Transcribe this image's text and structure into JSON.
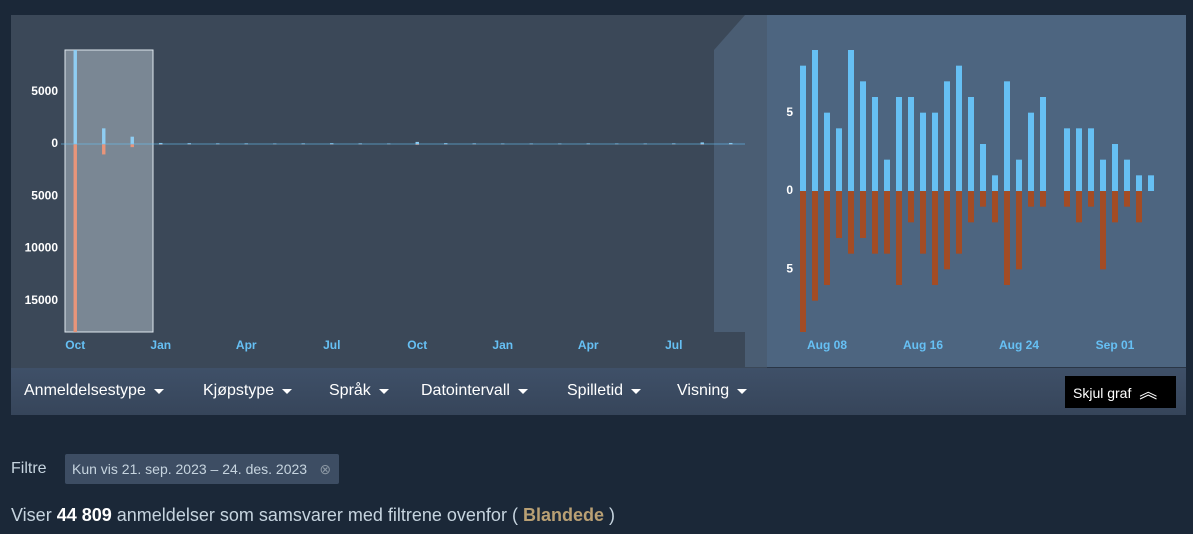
{
  "chart_data": [
    {
      "type": "bar",
      "categories": [
        "Oct",
        null,
        null,
        "Jan",
        null,
        null,
        "Apr",
        null,
        null,
        "Jul",
        null,
        null,
        "Oct",
        null,
        null,
        "Jan",
        null,
        null,
        "Apr",
        null,
        null,
        "Jul",
        null,
        null
      ],
      "series": [
        {
          "color": "#8fcdf2",
          "values": [
            9000,
            1500,
            700,
            100,
            80,
            60,
            60,
            50,
            60,
            80,
            60,
            50,
            200,
            80,
            60,
            50,
            50,
            50,
            60,
            50,
            50,
            60,
            150,
            100
          ]
        },
        {
          "color": "#e8957a",
          "values": [
            -18000,
            -1000,
            -300,
            -60,
            -50,
            -40,
            -40,
            -30,
            -40,
            -50,
            -40,
            -30,
            -80,
            -50,
            -40,
            -30,
            -30,
            -30,
            -40,
            -30,
            -30,
            -40,
            -60,
            -50
          ]
        }
      ],
      "ylim": [
        -18000,
        9000
      ],
      "yticks": [
        5000,
        0,
        {
          "value": -5000,
          "label": "5000"
        },
        {
          "value": -10000,
          "label": "10000"
        },
        {
          "value": -15000,
          "label": "15000"
        }
      ]
    },
    {
      "type": "bar",
      "categories": [
        null,
        null,
        "Aug 08",
        null,
        null,
        null,
        null,
        null,
        null,
        null,
        "Aug 16",
        null,
        null,
        null,
        null,
        null,
        null,
        null,
        "Aug 24",
        null,
        null,
        null,
        null,
        null,
        null,
        null,
        "Sep 01",
        null,
        null,
        null
      ],
      "series": [
        {
          "color": "#66c0f4",
          "values": [
            8,
            9,
            5,
            4,
            9,
            7,
            6,
            2,
            6,
            6,
            5,
            5,
            7,
            8,
            6,
            3,
            1,
            7,
            2,
            5,
            6,
            0,
            4,
            4,
            4,
            2,
            3,
            2,
            1,
            1
          ]
        },
        {
          "color": "#a34c25",
          "values": [
            -9,
            -7,
            -6,
            -3,
            -4,
            -3,
            -4,
            -4,
            -6,
            -2,
            -4,
            -6,
            -5,
            -4,
            -2,
            -1,
            -2,
            -6,
            -5,
            -1,
            -1,
            0,
            -1,
            -2,
            -1,
            -5,
            -2,
            -1,
            -2,
            0
          ]
        }
      ],
      "ylim": [
        -9,
        9
      ],
      "yticks": [
        5,
        0,
        {
          "value": -5,
          "label": "5"
        }
      ]
    }
  ],
  "menu": [
    "Anmeldelsestype",
    "Kjøpstype",
    "Språk",
    "Datointervall",
    "Spilletid",
    "Visning"
  ],
  "toggle_button": "Skjul graf",
  "filters": {
    "label": "Filtre",
    "chip": "Kun vis 21. sep. 2023 – 24. des. 2023"
  },
  "summary": {
    "prefix": "Viser",
    "count": "44 809",
    "middle": "anmeldelser som samsvarer med filtrene ovenfor (",
    "rating": "Blandede",
    "suffix": ")"
  }
}
